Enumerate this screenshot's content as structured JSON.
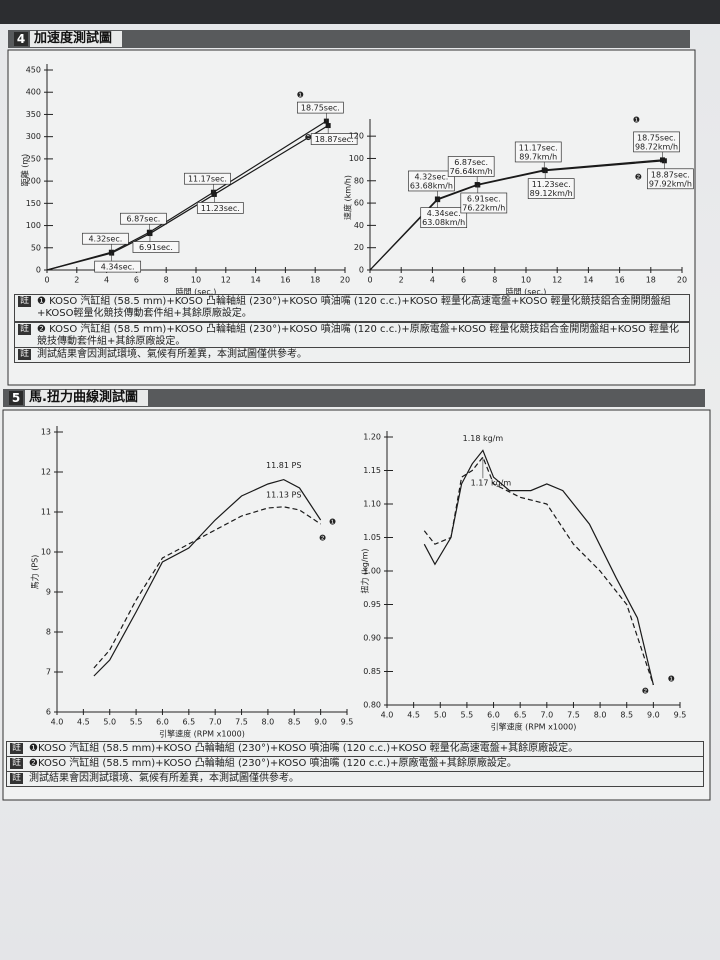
{
  "sections": [
    {
      "number": "4",
      "title": "加速度測試圖",
      "notes": [
        {
          "mark": "註",
          "text": "❶ KOSO 汽缸組 (58.5 mm)+KOSO 凸輪軸組 (230°)+KOSO 噴油嘴 (120 c.c.)+KOSO 輕量化高速電盤+KOSO 輕量化競技鋁合金開閉盤組+KOSO輕量化競技傳動套件組+其餘原廠設定。"
        },
        {
          "mark": "註",
          "text": "❷ KOSO 汽缸組 (58.5 mm)+KOSO 凸輪軸組 (230°)+KOSO 噴油嘴 (120 c.c.)+原廠電盤+KOSO 輕量化競技鋁合金開閉盤組+KOSO 輕量化競技傳動套件組+其餘原廠設定。"
        },
        {
          "mark": "註",
          "text": "測試結果會因測試環境、氣候有所差異，本測試圖僅供參考。"
        }
      ]
    },
    {
      "number": "5",
      "title": "馬.扭力曲線測試圖",
      "notes": [
        {
          "mark": "註",
          "text": "❶KOSO 汽缸組 (58.5 mm)+KOSO 凸輪軸組 (230°)+KOSO 噴油嘴 (120 c.c.)+KOSO 輕量化高速電盤+其餘原廠設定。"
        },
        {
          "mark": "註",
          "text": "❷KOSO 汽缸組 (58.5 mm)+KOSO 凸輪軸組 (230°)+KOSO 噴油嘴 (120 c.c.)+原廠電盤+其餘原廠設定。"
        },
        {
          "mark": "註",
          "text": "測試結果會因測試環境、氣候有所差異，本測試圖僅供參考。"
        }
      ]
    }
  ],
  "chart_data": [
    {
      "type": "line",
      "xlabel": "時間 (sec.)",
      "ylabel": "距離 (m)",
      "xlim": [
        0,
        20
      ],
      "xticks": [
        0,
        2,
        4,
        6,
        8,
        10,
        12,
        14,
        16,
        18,
        20
      ],
      "ylim": [
        0,
        450
      ],
      "yticks": [
        0,
        50,
        100,
        150,
        200,
        250,
        300,
        350,
        400,
        450
      ],
      "series": [
        {
          "name": "❶",
          "color": "#1a1a1a",
          "dashed": false,
          "x": [
            0,
            4.32,
            6.87,
            11.17,
            18.75
          ],
          "values": [
            0,
            40,
            85,
            175,
            335
          ],
          "point_labels": [
            null,
            "4.32sec.",
            "6.87sec.",
            "11.17sec.",
            "18.75sec."
          ]
        },
        {
          "name": "❷",
          "color": "#1a1a1a",
          "dashed": false,
          "x": [
            0,
            4.34,
            6.91,
            11.23,
            18.87
          ],
          "values": [
            0,
            38,
            82,
            170,
            325
          ],
          "point_labels": [
            null,
            "4.34sec.",
            "6.91sec.",
            "11.23sec.",
            "18.87sec."
          ]
        }
      ]
    },
    {
      "type": "line",
      "xlabel": "時間 (sec.)",
      "ylabel": "速度 (km/h)",
      "xlim": [
        0,
        20
      ],
      "xticks": [
        0,
        2,
        4,
        6,
        8,
        10,
        12,
        14,
        16,
        18,
        20
      ],
      "ylim": [
        0,
        130
      ],
      "yticks": [
        0,
        20,
        40,
        60,
        80,
        100,
        120
      ],
      "series": [
        {
          "name": "❶",
          "color": "#1a1a1a",
          "dashed": false,
          "x": [
            0,
            4.32,
            6.87,
            11.17,
            18.75
          ],
          "values": [
            0,
            63.68,
            76.64,
            89.7,
            98.72
          ],
          "point_labels": [
            null,
            [
              "4.32sec.",
              "63.68km/h"
            ],
            [
              "6.87sec.",
              "76.64km/h"
            ],
            [
              "11.17sec.",
              "89.7km/h"
            ],
            [
              "18.75sec.",
              "98.72km/h"
            ]
          ]
        },
        {
          "name": "❷",
          "color": "#1a1a1a",
          "dashed": false,
          "x": [
            0,
            4.34,
            6.91,
            11.23,
            18.87
          ],
          "values": [
            0,
            63.08,
            76.22,
            89.12,
            97.92
          ],
          "point_labels": [
            null,
            [
              "4.34sec.",
              "63.08km/h"
            ],
            [
              "6.91sec.",
              "76.22km/h"
            ],
            [
              "11.23sec.",
              "89.12km/h"
            ],
            [
              "18.87sec.",
              "97.92km/h"
            ]
          ]
        }
      ]
    },
    {
      "type": "line",
      "xlabel": "引擎速度 (RPM x1000)",
      "ylabel": "馬力 (PS)",
      "xlim": [
        4,
        9.5
      ],
      "xticks": [
        {
          "value": 4,
          "label": "4.0"
        },
        4.5,
        {
          "value": 5,
          "label": "5.0"
        },
        5.5,
        {
          "value": 6,
          "label": "6.0"
        },
        6.5,
        {
          "value": 7,
          "label": "7.0"
        },
        7.5,
        {
          "value": 8,
          "label": "8.0"
        },
        8.5,
        {
          "value": 9,
          "label": "9.0"
        },
        9.5
      ],
      "ylim": [
        6,
        13
      ],
      "yticks": [
        6,
        7,
        8,
        9,
        10,
        11,
        12,
        13
      ],
      "series": [
        {
          "name": "❶",
          "color": "#1a1a1a",
          "dashed": false,
          "x": [
            4.7,
            5.0,
            5.5,
            6.0,
            6.5,
            7.0,
            7.5,
            8.0,
            8.3,
            8.6,
            8.8,
            9.0
          ],
          "values": [
            6.9,
            7.3,
            8.5,
            9.75,
            10.1,
            10.8,
            11.4,
            11.7,
            11.81,
            11.6,
            11.2,
            10.8
          ],
          "peak_label": "11.81 PS"
        },
        {
          "name": "❷",
          "color": "#1a1a1a",
          "dashed": true,
          "x": [
            4.7,
            5.0,
            5.5,
            6.0,
            6.5,
            7.0,
            7.5,
            8.0,
            8.3,
            8.6,
            9.0
          ],
          "values": [
            7.1,
            7.55,
            8.8,
            9.85,
            10.2,
            10.55,
            10.9,
            11.1,
            11.13,
            11.05,
            10.7
          ],
          "peak_label": "11.13 PS"
        }
      ]
    },
    {
      "type": "line",
      "xlabel": "引擎速度 (RPM x1000)",
      "ylabel": "扭力 (kg/m)",
      "xlim": [
        4,
        9.5
      ],
      "xticks": [
        {
          "value": 4,
          "label": "4.0"
        },
        4.5,
        {
          "value": 5,
          "label": "5.0"
        },
        5.5,
        {
          "value": 6,
          "label": "6.0"
        },
        6.5,
        {
          "value": 7,
          "label": "7.0"
        },
        7.5,
        {
          "value": 8,
          "label": "8.0"
        },
        8.5,
        {
          "value": 9,
          "label": "9.0"
        },
        9.5
      ],
      "ylim": [
        0.8,
        1.2
      ],
      "yticks": [
        {
          "value": 0.8,
          "label": "0.80"
        },
        0.85,
        {
          "value": 0.9,
          "label": "0.90"
        },
        0.95,
        {
          "value": 1,
          "label": "1.00"
        },
        1.05,
        {
          "value": 1.1,
          "label": "1.10"
        },
        1.15,
        {
          "value": 1.2,
          "label": "1.20"
        }
      ],
      "series": [
        {
          "name": "❶",
          "color": "#1a1a1a",
          "dashed": false,
          "x": [
            4.7,
            4.9,
            5.2,
            5.4,
            5.6,
            5.8,
            6.0,
            6.3,
            6.7,
            7.0,
            7.3,
            7.8,
            8.3,
            8.7,
            9.0
          ],
          "values": [
            1.04,
            1.01,
            1.05,
            1.13,
            1.16,
            1.18,
            1.14,
            1.12,
            1.12,
            1.13,
            1.12,
            1.07,
            0.99,
            0.93,
            0.83
          ],
          "peak_label": "1.18 kg/m"
        },
        {
          "name": "❷",
          "color": "#1a1a1a",
          "dashed": true,
          "x": [
            4.7,
            4.9,
            5.2,
            5.4,
            5.6,
            5.8,
            6.0,
            6.5,
            7.0,
            7.5,
            8.0,
            8.5,
            9.0
          ],
          "values": [
            1.06,
            1.04,
            1.05,
            1.14,
            1.15,
            1.17,
            1.13,
            1.11,
            1.1,
            1.04,
            1.0,
            0.95,
            0.83
          ],
          "peak_label": "1.17 kg/m"
        }
      ]
    }
  ]
}
